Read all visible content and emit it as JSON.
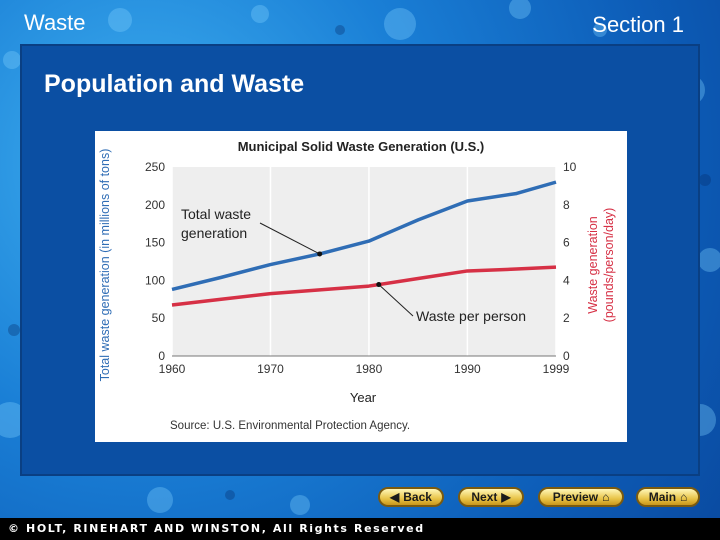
{
  "header": {
    "topic": "Waste",
    "section": "Section 1"
  },
  "slide": {
    "title": "Population and Waste"
  },
  "chart_data": {
    "type": "line",
    "title": "Municipal Solid Waste Generation (U.S.)",
    "xlabel": "Year",
    "ylabel": "Total waste generation (in millions of tons)",
    "y2label_line1": "Waste generation",
    "y2label_line2": "(pounds/person/day)",
    "xlim": [
      1960,
      1999
    ],
    "ylim": [
      0,
      250
    ],
    "y2lim": [
      0,
      10
    ],
    "x_ticks": [
      1960,
      1970,
      1980,
      1990,
      1999
    ],
    "y_ticks": [
      0,
      50,
      100,
      150,
      200,
      250
    ],
    "y2_ticks": [
      0,
      2,
      4,
      6,
      8,
      10
    ],
    "series": [
      {
        "name": "Total waste generation",
        "axis": "left",
        "color": "#2f6db5",
        "x": [
          1960,
          1965,
          1970,
          1975,
          1980,
          1985,
          1990,
          1995,
          1999
        ],
        "y": [
          88,
          104,
          121,
          135,
          152,
          180,
          205,
          215,
          230
        ]
      },
      {
        "name": "Waste per person",
        "axis": "right",
        "color": "#d63045",
        "x": [
          1960,
          1965,
          1970,
          1975,
          1980,
          1985,
          1990,
          1995,
          1999
        ],
        "y": [
          2.7,
          3.0,
          3.3,
          3.5,
          3.7,
          4.1,
          4.5,
          4.6,
          4.7
        ]
      }
    ],
    "annotations": [
      {
        "text_line1": "Total waste",
        "text_line2": "generation",
        "points_to_x": 1975,
        "points_to_series": 0
      },
      {
        "text_line1": "Waste per person",
        "points_to_x": 1981,
        "points_to_series": 1
      }
    ],
    "source": "Source: U.S. Environmental Protection Agency."
  },
  "nav": {
    "back": "Back",
    "next": "Next",
    "preview": "Preview",
    "main": "Main"
  },
  "footer": {
    "copyright": "© HOLT, RINEHART AND WINSTON, All Rights Reserved"
  },
  "colors": {
    "axis_left_text": "#2f6db5",
    "axis_right_text": "#d63045"
  }
}
